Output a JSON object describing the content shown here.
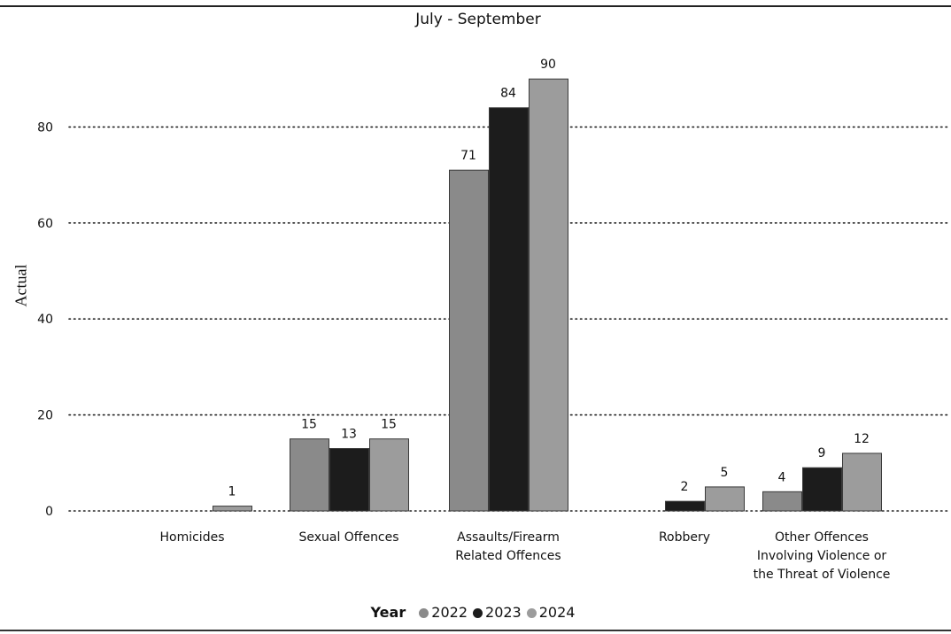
{
  "chart_data": {
    "type": "bar",
    "title": "July - September",
    "xlabel": "",
    "ylabel": "Actual",
    "ylim": [
      0,
      90
    ],
    "yticks": [
      0,
      20,
      40,
      60,
      80
    ],
    "grid": true,
    "grid_style": "dotted",
    "legend_position": "bottom",
    "legend_title": "Year",
    "categories": [
      [
        "Homicides"
      ],
      [
        "Sexual Offences"
      ],
      [
        "Assaults/Firearm",
        "Related Offences"
      ],
      [
        "Robbery"
      ],
      [
        "Other Offences",
        "Involving Violence or",
        "the Threat of Violence"
      ]
    ],
    "series": [
      {
        "name": "2022",
        "color": "#8a8a8a",
        "values": [
          null,
          15,
          71,
          null,
          4
        ]
      },
      {
        "name": "2023",
        "color": "#1c1c1c",
        "values": [
          null,
          13,
          84,
          2,
          9
        ]
      },
      {
        "name": "2024",
        "color": "#9c9c9c",
        "values": [
          1,
          15,
          90,
          5,
          12
        ]
      }
    ]
  }
}
